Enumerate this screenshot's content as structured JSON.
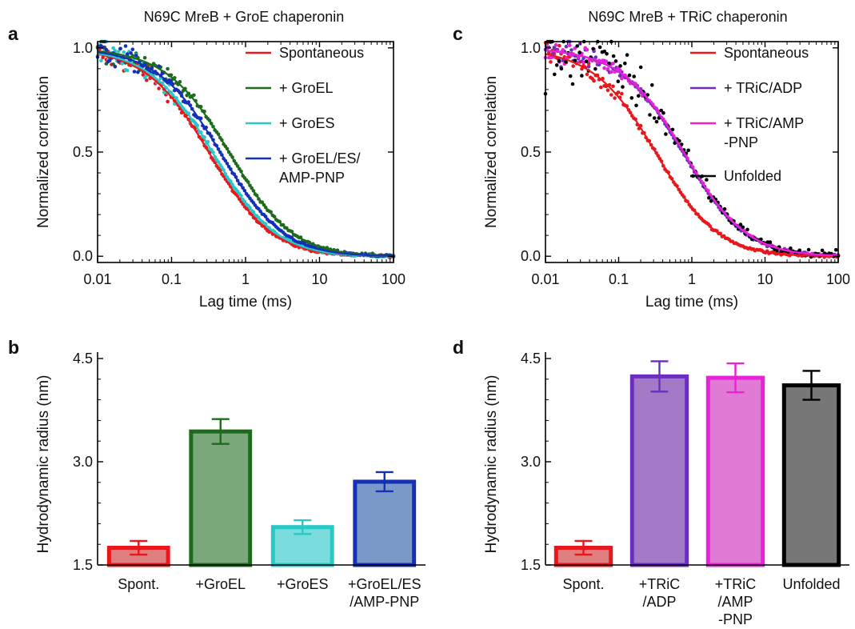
{
  "panels": {
    "a": {
      "letter": "a",
      "title": "N69C MreB + GroE chaperonin"
    },
    "b": {
      "letter": "b"
    },
    "c": {
      "letter": "c",
      "title": "N69C MreB + TRiC chaperonin"
    },
    "d": {
      "letter": "d"
    }
  },
  "chart_data": [
    {
      "id": "a",
      "type": "line",
      "title": "N69C MreB + GroE chaperonin",
      "xlabel": "Lag time (ms)",
      "ylabel": "Normalized correlation",
      "xscale": "log",
      "xlim": [
        0.01,
        100
      ],
      "ylim": [
        0.0,
        1.0
      ],
      "xticks": [
        0.01,
        0.1,
        1,
        10,
        100
      ],
      "xtick_labels": [
        "0.01",
        "0.1",
        "1",
        "10",
        "100"
      ],
      "yticks": [
        0.0,
        0.5,
        1.0
      ],
      "ytick_labels": [
        "0.0",
        "0.5",
        "1.0"
      ],
      "legend_position": "top-right",
      "grid": false,
      "series": [
        {
          "name": "Spontaneous",
          "color": "#e8171c",
          "tau_ms": 0.33,
          "kind": "fit+points",
          "x": [
            0.01,
            0.03,
            0.1,
            0.3,
            1,
            3,
            10,
            100
          ],
          "y": [
            0.97,
            0.92,
            0.78,
            0.52,
            0.24,
            0.08,
            0.02,
            0.0
          ]
        },
        {
          "name": "+ GroEL",
          "color": "#1e6b1e",
          "tau_ms": 0.62,
          "kind": "fit+points",
          "x": [
            0.01,
            0.03,
            0.1,
            0.3,
            1,
            3,
            10,
            100
          ],
          "y": [
            0.98,
            0.95,
            0.86,
            0.67,
            0.38,
            0.16,
            0.05,
            0.0
          ]
        },
        {
          "name": "+ GroES",
          "color": "#27c8c8",
          "tau_ms": 0.37,
          "kind": "fit+points",
          "x": [
            0.01,
            0.03,
            0.1,
            0.3,
            1,
            3,
            10,
            100
          ],
          "y": [
            0.97,
            0.92,
            0.79,
            0.54,
            0.26,
            0.09,
            0.03,
            0.0
          ]
        },
        {
          "name": "+ GroEL/ES/\nAMP-PNP",
          "color": "#1530b8",
          "tau_ms": 0.47,
          "kind": "fit+points",
          "x": [
            0.01,
            0.03,
            0.1,
            0.3,
            1,
            3,
            10,
            100
          ],
          "y": [
            0.98,
            0.94,
            0.82,
            0.6,
            0.31,
            0.12,
            0.04,
            0.0
          ]
        }
      ]
    },
    {
      "id": "c",
      "type": "line",
      "title": "N69C MreB + TRiC chaperonin",
      "xlabel": "Lag time (ms)",
      "ylabel": "Normalized correlation",
      "xscale": "log",
      "xlim": [
        0.01,
        100
      ],
      "ylim": [
        0.0,
        1.0
      ],
      "xticks": [
        0.01,
        0.1,
        1,
        10,
        100
      ],
      "xtick_labels": [
        "0.01",
        "0.1",
        "1",
        "10",
        "100"
      ],
      "yticks": [
        0.0,
        0.5,
        1.0
      ],
      "ytick_labels": [
        "0.0",
        "0.5",
        "1.0"
      ],
      "legend_position": "top-right",
      "grid": false,
      "series": [
        {
          "name": "Spontaneous",
          "color": "#e8171c",
          "tau_ms": 0.33,
          "kind": "fit+points",
          "x": [
            0.01,
            0.03,
            0.1,
            0.3,
            1,
            3,
            10,
            100
          ],
          "y": [
            0.97,
            0.92,
            0.78,
            0.52,
            0.24,
            0.08,
            0.02,
            0.0
          ]
        },
        {
          "name": "+ TRiC/ADP",
          "color": "#6a2fc0",
          "tau_ms": 0.78,
          "kind": "fit+points",
          "x": [
            0.01,
            0.03,
            0.1,
            0.3,
            1,
            3,
            10,
            100
          ],
          "y": [
            0.98,
            0.95,
            0.87,
            0.71,
            0.44,
            0.19,
            0.06,
            0.0
          ]
        },
        {
          "name": "+ TRiC/AMP\n-PNP",
          "color": "#e822d6",
          "tau_ms": 0.8,
          "kind": "fit+points",
          "x": [
            0.01,
            0.03,
            0.1,
            0.3,
            1,
            3,
            10,
            100
          ],
          "y": [
            0.98,
            0.95,
            0.88,
            0.72,
            0.45,
            0.2,
            0.07,
            0.0
          ]
        },
        {
          "name": "Unfolded",
          "color": "#000000",
          "tau_ms": 0.82,
          "kind": "noisy points",
          "x": [
            0.01,
            0.03,
            0.1,
            0.3,
            1,
            3,
            10,
            100
          ],
          "y": [
            0.97,
            0.95,
            0.87,
            0.72,
            0.45,
            0.2,
            0.07,
            0.0
          ]
        }
      ]
    },
    {
      "id": "b",
      "type": "bar",
      "ylabel": "Hydrodynamic radius (nm)",
      "ylim": [
        1.5,
        4.5
      ],
      "yticks": [
        1.5,
        3.0,
        4.5
      ],
      "ytick_labels": [
        "1.5",
        "3.0",
        "4.5"
      ],
      "categories": [
        "Spont.",
        "+GroEL",
        "+GroES",
        "+GroEL/ES\n/AMP-PNP"
      ],
      "values": [
        1.75,
        3.44,
        2.05,
        2.71
      ],
      "errors": [
        0.1,
        0.18,
        0.1,
        0.14
      ],
      "colors": [
        "#e8171c",
        "#1e6b1e",
        "#27c8c8",
        "#1530b8"
      ],
      "fills": [
        "#e07f7f",
        "#7aa87a",
        "#7adcdc",
        "#7a99c8"
      ]
    },
    {
      "id": "d",
      "type": "bar",
      "ylabel": "Hydrodynamic radius (nm)",
      "ylim": [
        1.5,
        4.5
      ],
      "yticks": [
        1.5,
        3.0,
        4.5
      ],
      "ytick_labels": [
        "1.5",
        "3.0",
        "4.5"
      ],
      "categories": [
        "Spont.",
        "+TRiC\n/ADP",
        "+TRiC\n/AMP\n-PNP",
        "Unfolded"
      ],
      "values": [
        1.75,
        4.24,
        4.22,
        4.11
      ],
      "errors": [
        0.1,
        0.22,
        0.21,
        0.21
      ],
      "colors": [
        "#e8171c",
        "#6a2fc0",
        "#e822d6",
        "#000000"
      ],
      "fills": [
        "#e07f7f",
        "#a47ac6",
        "#e07ad4",
        "#777777"
      ]
    }
  ]
}
